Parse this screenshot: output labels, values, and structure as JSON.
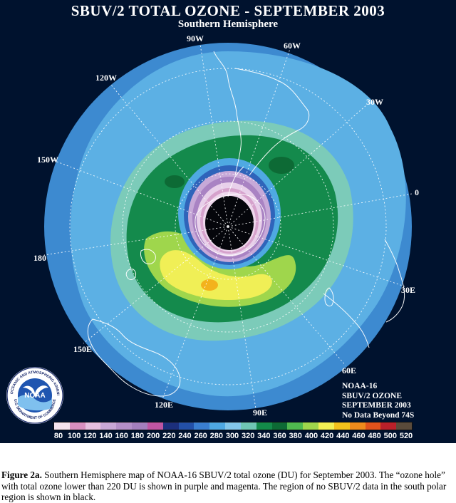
{
  "title": "SBUV/2 TOTAL OZONE - SEPTEMBER 2003",
  "subtitle": "Southern Hemisphere",
  "longitude_labels": [
    "90W",
    "60W",
    "30W",
    "0",
    "30E",
    "60E",
    "90E",
    "120E",
    "150E",
    "180",
    "150W",
    "120W"
  ],
  "info_lines": [
    "NOAA-16",
    "SBUV/2 OZONE",
    "SEPTEMBER 2003",
    "No Data Beyond 74S"
  ],
  "logo": {
    "center_text": "NOAA",
    "ring_text": "NATIONAL OCEANIC AND ATMOSPHERIC ADMINISTRATION",
    "bottom_text": "U.S. DEPARTMENT OF COMMERCE"
  },
  "colorbar": {
    "ticks": [
      "80",
      "100",
      "120",
      "140",
      "160",
      "180",
      "200",
      "220",
      "240",
      "260",
      "280",
      "300",
      "320",
      "340",
      "360",
      "380",
      "400",
      "420",
      "440",
      "460",
      "480",
      "500",
      "520"
    ],
    "colors": [
      "#f3e3ee",
      "#d88fc0",
      "#e7bfe0",
      "#c8a7d6",
      "#b48fc8",
      "#a47fbd",
      "#bf55a3",
      "#1c2f7c",
      "#2350a8",
      "#3a7ed0",
      "#4ea8e2",
      "#82c6ea",
      "#6fc6b4",
      "#138a4a",
      "#0d6a35",
      "#4fb94f",
      "#9fd64c",
      "#f2f054",
      "#f3c21c",
      "#ee8a1c",
      "#e0521c",
      "#b9202a",
      "#5a4b3b"
    ]
  },
  "caption": {
    "label": "Figure 2a.",
    "text": " Southern Hemisphere map of NOAA-16 SBUV/2 total ozone (DU) for September 2003.  The “ozone hole” with total ozone lower than 220 DU is shown in purple and magenta.  The region of no SBUV/2 data in the south polar region is shown in black."
  }
}
